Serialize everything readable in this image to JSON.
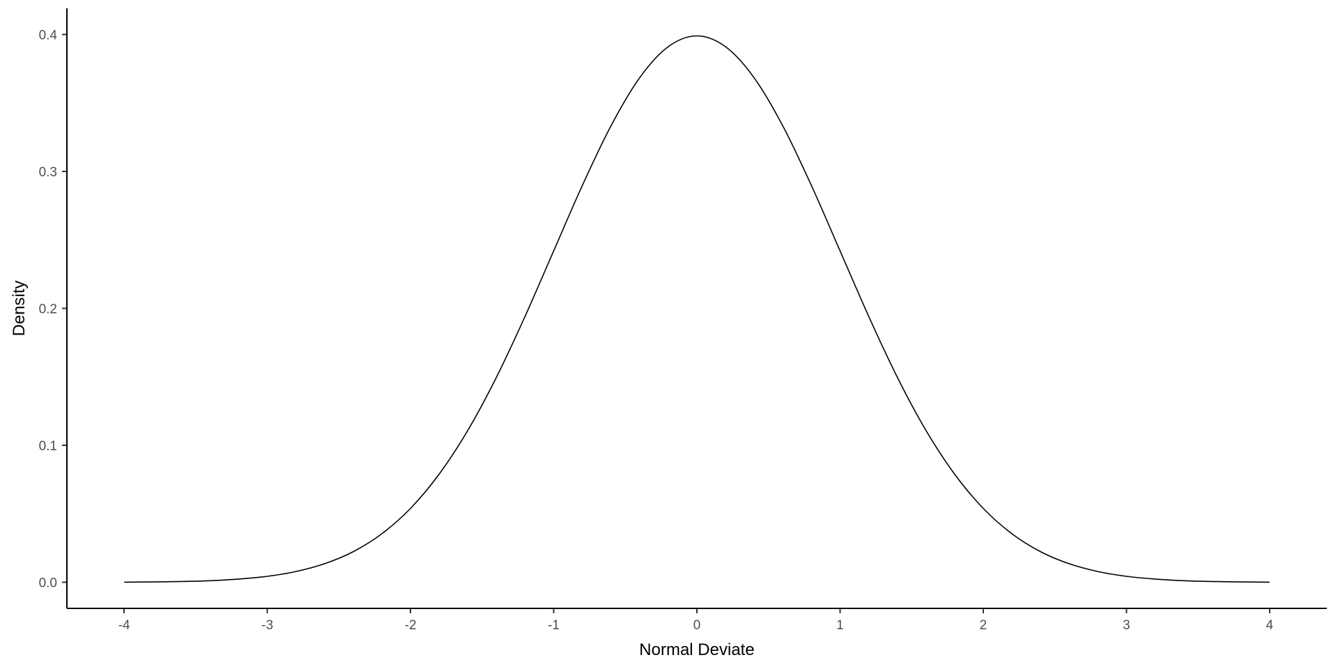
{
  "chart_data": {
    "type": "line",
    "title": "",
    "xlabel": "Normal Deviate",
    "ylabel": "Density",
    "xlim": [
      -4.4,
      4.4
    ],
    "ylim": [
      -0.019,
      0.419
    ],
    "xticks": [
      -4,
      -3,
      -2,
      -1,
      0,
      1,
      2,
      3,
      4
    ],
    "xtick_labels": [
      "-4",
      "-3",
      "-2",
      "-1",
      "0",
      "1",
      "2",
      "3",
      "4"
    ],
    "yticks": [
      0.0,
      0.1,
      0.2,
      0.3,
      0.4
    ],
    "ytick_labels": [
      "0.0",
      "0.1",
      "0.2",
      "0.3",
      "0.4"
    ],
    "grid": false,
    "legend": "none",
    "series": [
      {
        "x": [
          -4.0,
          -3.8,
          -3.6,
          -3.4,
          -3.2,
          -3.0,
          -2.8,
          -2.6,
          -2.4,
          -2.2,
          -2.0,
          -1.8,
          -1.6,
          -1.4,
          -1.2,
          -1.0,
          -0.8,
          -0.6,
          -0.4,
          -0.2,
          0.0,
          0.2,
          0.4,
          0.6,
          0.8,
          1.0,
          1.2,
          1.4,
          1.6,
          1.8,
          2.0,
          2.2,
          2.4,
          2.6,
          2.8,
          3.0,
          3.2,
          3.4,
          3.6,
          3.8,
          4.0
        ],
        "y": [
          0.0001,
          0.0003,
          0.0006,
          0.0012,
          0.0024,
          0.0044,
          0.0079,
          0.0136,
          0.0224,
          0.0355,
          0.054,
          0.079,
          0.1109,
          0.1497,
          0.1942,
          0.242,
          0.2897,
          0.3332,
          0.3683,
          0.391,
          0.3989,
          0.391,
          0.3683,
          0.3332,
          0.2897,
          0.242,
          0.1942,
          0.1497,
          0.1109,
          0.079,
          0.054,
          0.0355,
          0.0224,
          0.0136,
          0.0079,
          0.0044,
          0.0024,
          0.0012,
          0.0006,
          0.0003,
          0.0001
        ]
      }
    ]
  },
  "colors": {
    "background": "#ffffff",
    "line": "#000000",
    "axis": "#000000",
    "tick_label": "#4d4d4d",
    "axis_title": "#000000"
  }
}
